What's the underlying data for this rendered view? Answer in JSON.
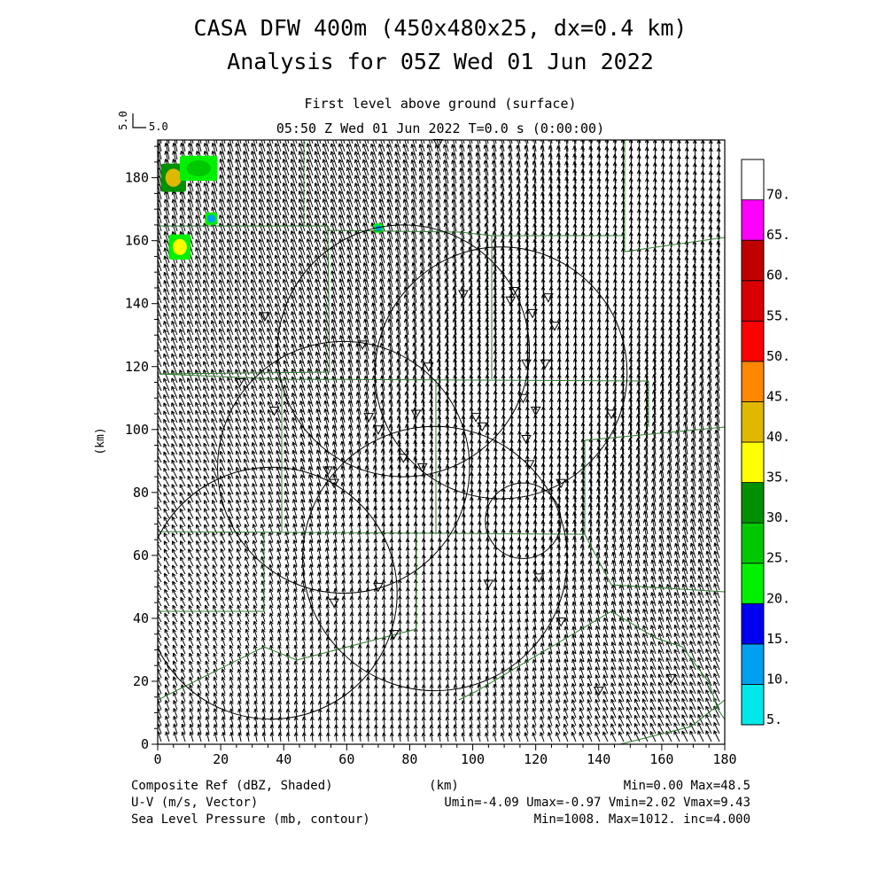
{
  "title": {
    "line1": "CASA DFW 400m (450x480x25, dx=0.4 km)",
    "line2": "Analysis for 05Z Wed 01 Jun 2022"
  },
  "subtitle": {
    "level": "First level above ground (surface)",
    "time": "05:50 Z Wed 01 Jun 2022    T=0.0 s (0:00:00)"
  },
  "vector_key": {
    "label": "5.0",
    "side_label": "5.0"
  },
  "colorbar": {
    "labels": [
      "5.",
      "10.",
      "15.",
      "20.",
      "25.",
      "30.",
      "35.",
      "40.",
      "45.",
      "50.",
      "55.",
      "60.",
      "65.",
      "70."
    ],
    "colors": [
      "#00e8e8",
      "#00a0f0",
      "#0000f0",
      "#00f000",
      "#00c800",
      "#009000",
      "#ffff00",
      "#e0b800",
      "#ff8800",
      "#ff0000",
      "#d80000",
      "#c00000",
      "#ff00ff",
      "#ffffff"
    ]
  },
  "footer": {
    "left1": "Composite Ref (dBZ, Shaded)",
    "left2": "U-V (m/s, Vector)",
    "left3": "Sea Level Pressure (mb, contour)",
    "center": "(km)",
    "right1": "Min=0.00 Max=48.5",
    "right2": "Umin=-4.09 Umax=-0.97 Vmin=2.02 Vmax=9.43",
    "right3": "Min=1008. Max=1012. inc=4.000"
  },
  "chart_data": {
    "type": "map",
    "xlabel": "",
    "ylabel": "(km)",
    "xlim": [
      0,
      180
    ],
    "ylim": [
      0,
      192
    ],
    "x_ticks": [
      "0",
      "20",
      "40",
      "60",
      "80",
      "100",
      "120",
      "140",
      "160",
      "180"
    ],
    "y_ticks": [
      "0",
      "20",
      "40",
      "60",
      "80",
      "100",
      "120",
      "140",
      "160",
      "180"
    ],
    "wind": {
      "u_range": [
        -4.09,
        -0.97
      ],
      "v_range": [
        2.02,
        9.43
      ]
    },
    "reflectivity_range": [
      0.0,
      48.5
    ],
    "pressure_range": [
      1008,
      1012
    ],
    "pressure_interval": 4.0,
    "radar_circles_km": [
      {
        "cx": 78,
        "cy": 125,
        "r": 40
      },
      {
        "cx": 109,
        "cy": 118,
        "r": 40
      },
      {
        "cx": 59,
        "cy": 88,
        "r": 40
      },
      {
        "cx": 88,
        "cy": 59,
        "r": 42
      },
      {
        "cx": 36,
        "cy": 48,
        "r": 40
      },
      {
        "cx": 116,
        "cy": 71,
        "r": 12
      }
    ],
    "stations_km": [
      [
        89,
        191
      ],
      [
        34,
        136
      ],
      [
        26,
        115
      ],
      [
        37,
        106
      ],
      [
        65,
        127
      ],
      [
        67,
        104
      ],
      [
        70,
        100
      ],
      [
        82,
        105
      ],
      [
        86,
        120
      ],
      [
        97,
        143
      ],
      [
        112,
        141
      ],
      [
        113,
        144
      ],
      [
        117,
        121
      ],
      [
        119,
        137
      ],
      [
        123,
        121
      ],
      [
        124,
        142
      ],
      [
        126,
        133
      ],
      [
        103,
        101
      ],
      [
        101,
        104
      ],
      [
        84,
        88
      ],
      [
        78,
        91
      ],
      [
        116,
        110
      ],
      [
        117,
        97
      ],
      [
        118,
        89
      ],
      [
        120,
        106
      ],
      [
        128,
        83
      ],
      [
        144,
        105
      ],
      [
        54,
        87
      ],
      [
        56,
        83
      ],
      [
        70,
        50
      ],
      [
        105,
        51
      ],
      [
        121,
        53
      ],
      [
        128,
        39
      ],
      [
        75,
        35
      ],
      [
        56,
        45
      ],
      [
        140,
        17
      ],
      [
        163,
        21
      ]
    ],
    "echoes_km": [
      {
        "x": 5,
        "y": 180,
        "w": 8,
        "h": 9,
        "dbz": 42
      },
      {
        "x": 7,
        "y": 158,
        "w": 7,
        "h": 8,
        "dbz": 35
      },
      {
        "x": 13,
        "y": 183,
        "w": 12,
        "h": 8,
        "dbz": 28
      },
      {
        "x": 17,
        "y": 167,
        "w": 4,
        "h": 4,
        "dbz": 14
      },
      {
        "x": 70,
        "y": 164,
        "w": 3,
        "h": 3,
        "dbz": 14
      }
    ]
  }
}
